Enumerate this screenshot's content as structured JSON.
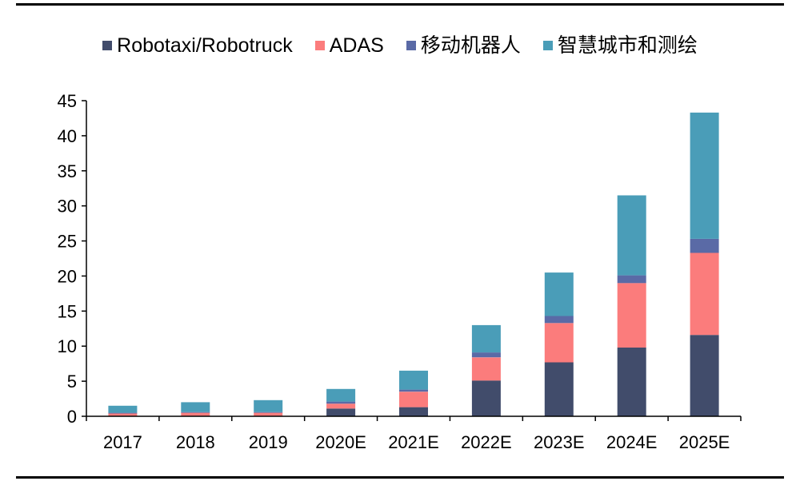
{
  "chart_data": {
    "type": "bar",
    "stacked": true,
    "categories": [
      "2017",
      "2018",
      "2019",
      "2020E",
      "2021E",
      "2022E",
      "2023E",
      "2024E",
      "2025E"
    ],
    "series": [
      {
        "name": "Robotaxi/Robotruck",
        "color": "#414C6B",
        "values": [
          0,
          0,
          0,
          1.1,
          1.3,
          5.1,
          7.7,
          9.8,
          11.6
        ]
      },
      {
        "name": "ADAS",
        "color": "#FB7C7C",
        "values": [
          0.4,
          0.5,
          0.5,
          0.7,
          2.2,
          3.3,
          5.6,
          9.2,
          11.7
        ]
      },
      {
        "name": "移动机器人",
        "color": "#5A6AA6",
        "values": [
          0.1,
          0.1,
          0.1,
          0.3,
          0.3,
          0.7,
          1.0,
          1.1,
          2.0
        ]
      },
      {
        "name": "智慧城市和测绘",
        "color": "#4A9DB8",
        "values": [
          1.0,
          1.4,
          1.7,
          1.8,
          2.7,
          3.9,
          6.2,
          11.4,
          18.0
        ]
      }
    ],
    "ylim": [
      0,
      45
    ],
    "yticks": [
      "0",
      "5",
      "10",
      "15",
      "20",
      "25",
      "30",
      "35",
      "40",
      "45"
    ],
    "grid": false,
    "legend_position": "top",
    "title": "",
    "xlabel": "",
    "ylabel": ""
  }
}
